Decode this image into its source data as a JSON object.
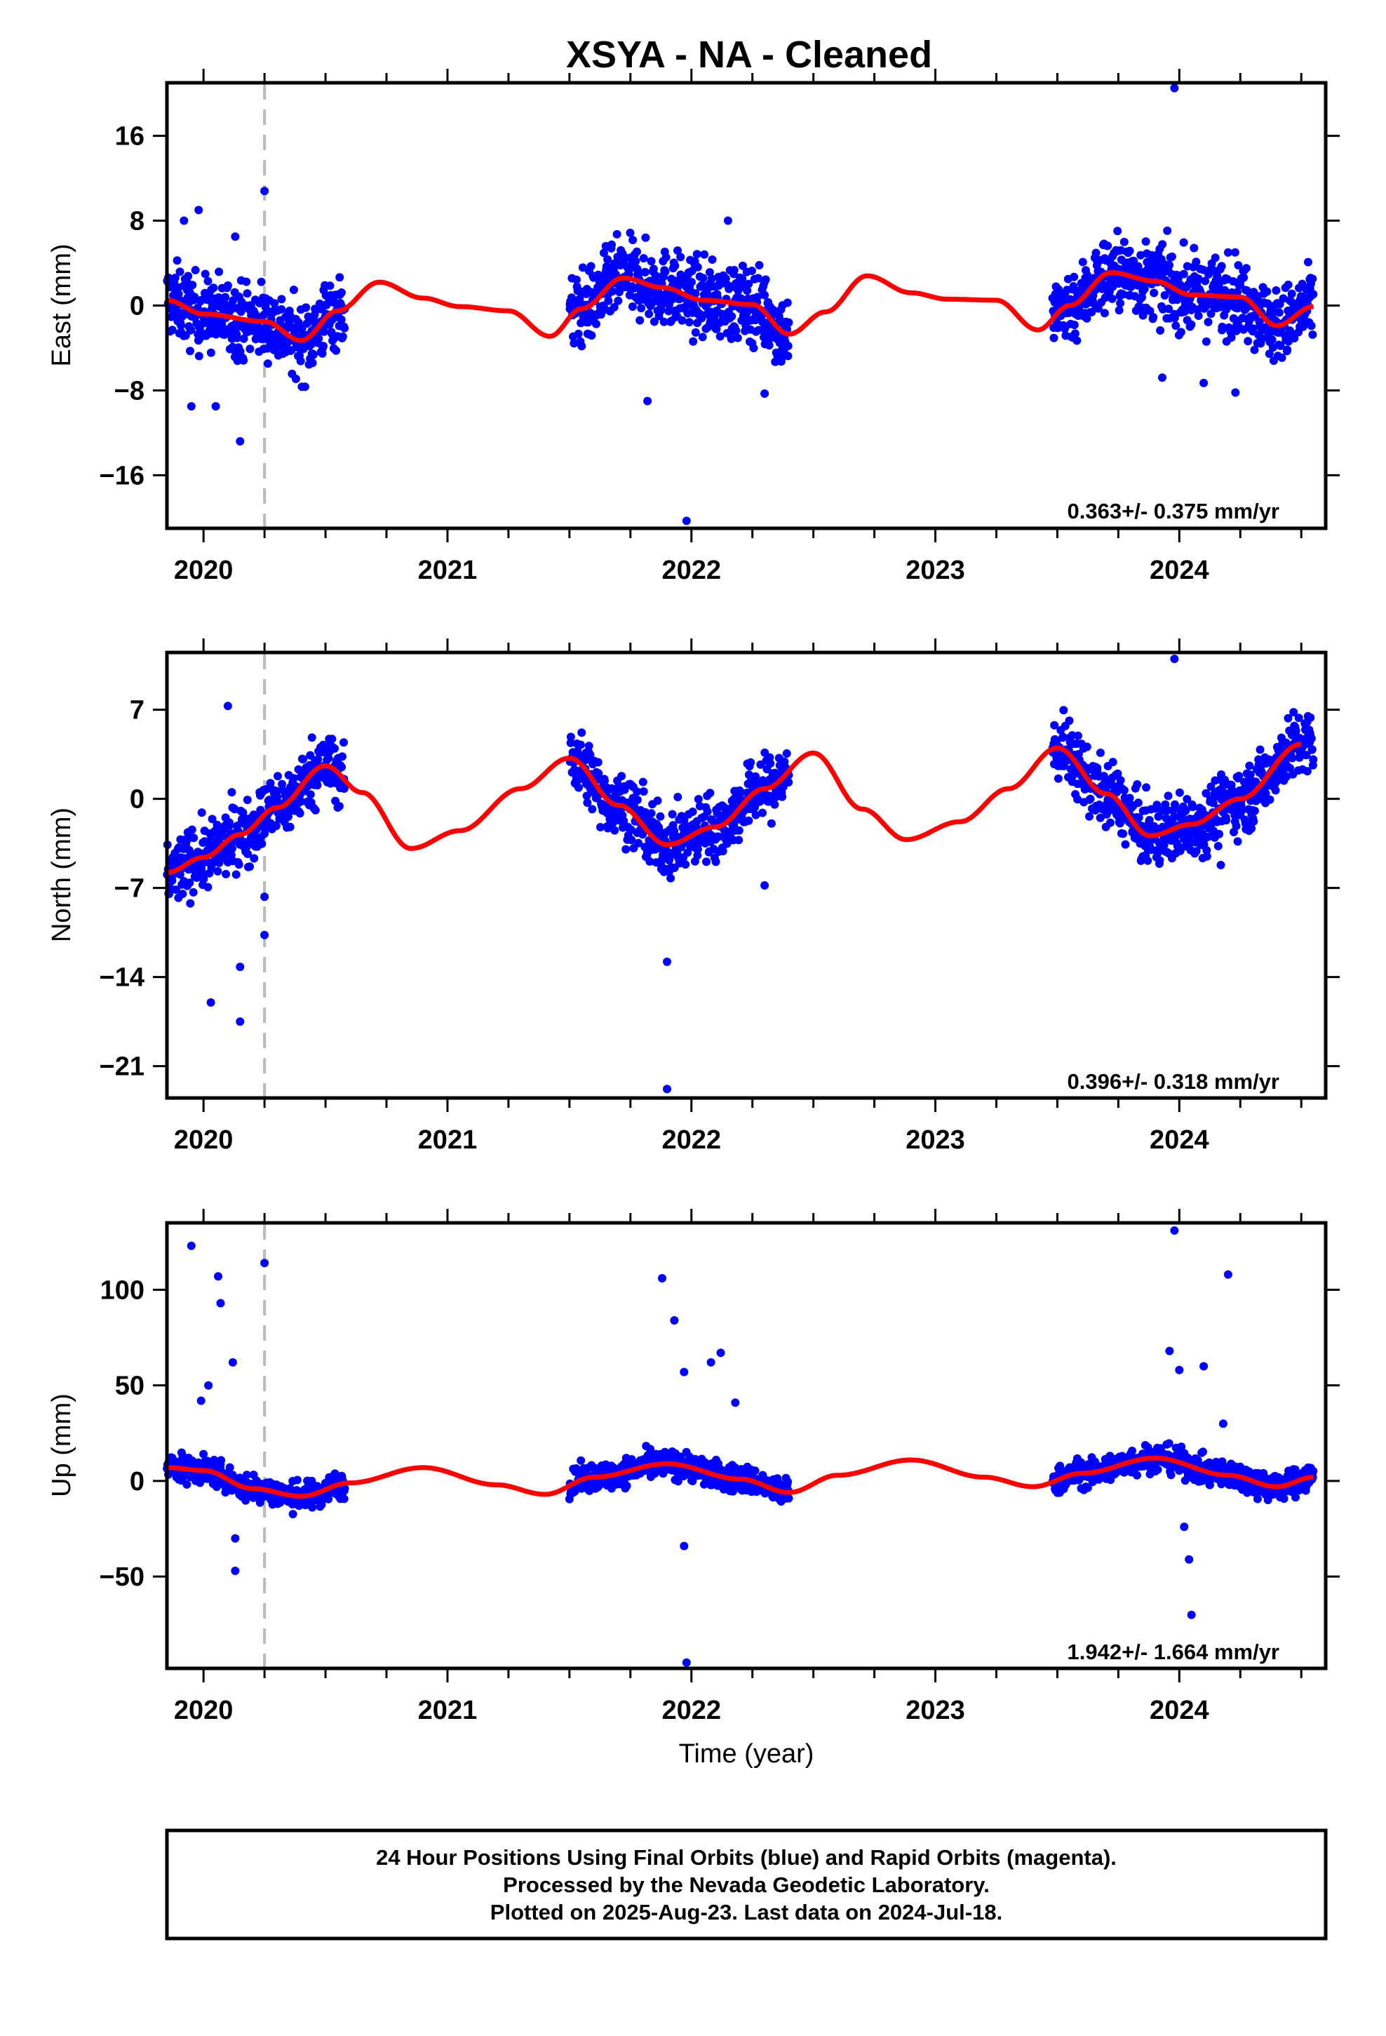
{
  "chart_data": [
    {
      "type": "scatter",
      "title": "XSYA  - NA - Cleaned",
      "ylabel": "East (mm)",
      "xlabel": "",
      "xlim": [
        2019.85,
        2024.6
      ],
      "ylim": [
        -21,
        21
      ],
      "yticks": [
        -16,
        -8,
        0,
        8,
        16
      ],
      "xticks": [
        2020,
        2021,
        2022,
        2023,
        2024
      ],
      "x_minor_ticks": "quarter-year",
      "reference_line_x": 2020.25,
      "rate_label": "0.363+/- 0.375 mm/yr",
      "grid": false,
      "colors": {
        "points": "#0000ff",
        "model": "#ff0000",
        "reference": "#bbbbbb"
      },
      "model_curve": {
        "x": [
          2019.85,
          2020.0,
          2020.25,
          2020.4,
          2020.55,
          2020.72,
          2020.9,
          2021.05,
          2021.25,
          2021.42,
          2021.55,
          2021.72,
          2021.88,
          2022.05,
          2022.25,
          2022.4,
          2022.55,
          2022.72,
          2022.9,
          2023.05,
          2023.25,
          2023.42,
          2023.55,
          2023.72,
          2023.9,
          2024.05,
          2024.25,
          2024.4,
          2024.55
        ],
        "y": [
          0.5,
          -0.8,
          -1.5,
          -3.3,
          -0.5,
          2.2,
          0.7,
          -0.1,
          -0.5,
          -2.9,
          -0.3,
          2.6,
          1.7,
          0.5,
          0.1,
          -2.7,
          -0.6,
          2.8,
          1.2,
          0.6,
          0.5,
          -2.3,
          0.0,
          3.1,
          2.3,
          1.0,
          0.8,
          -1.9,
          -0.1
        ]
      },
      "points": {
        "segments": [
          [
            2019.85,
            2020.58
          ],
          [
            2021.5,
            2022.4
          ],
          [
            2023.48,
            2024.55
          ]
        ],
        "count_estimate": 1500,
        "scatter_mm": 2.5,
        "outliers": [
          [
            2019.92,
            8.0
          ],
          [
            2019.98,
            9.0
          ],
          [
            2019.95,
            -9.5
          ],
          [
            2020.05,
            -9.5
          ],
          [
            2020.15,
            -12.8
          ],
          [
            2020.13,
            6.5
          ],
          [
            2020.25,
            10.8
          ],
          [
            2021.82,
            -9.0
          ],
          [
            2021.98,
            -20.3
          ],
          [
            2022.15,
            8.0
          ],
          [
            2022.3,
            -8.3
          ],
          [
            2023.98,
            20.5
          ],
          [
            2023.93,
            -6.8
          ],
          [
            2024.1,
            -7.3
          ],
          [
            2024.23,
            -8.2
          ],
          [
            2024.2,
            5.0
          ]
        ]
      }
    },
    {
      "type": "scatter",
      "ylabel": "North (mm)",
      "xlabel": "",
      "xlim": [
        2019.85,
        2024.6
      ],
      "ylim": [
        -23.5,
        11.5
      ],
      "yticks": [
        -21,
        -14,
        -7,
        0,
        7
      ],
      "xticks": [
        2020,
        2021,
        2022,
        2023,
        2024
      ],
      "x_minor_ticks": "quarter-year",
      "reference_line_x": 2020.25,
      "rate_label": "0.396+/- 0.318 mm/yr",
      "grid": false,
      "colors": {
        "points": "#0000ff",
        "model": "#ff0000",
        "reference": "#bbbbbb"
      },
      "model_curve": {
        "x": [
          2019.85,
          2020.0,
          2020.15,
          2020.3,
          2020.5,
          2020.65,
          2020.85,
          2021.05,
          2021.3,
          2021.5,
          2021.7,
          2021.9,
          2022.1,
          2022.3,
          2022.5,
          2022.7,
          2022.88,
          2023.1,
          2023.3,
          2023.5,
          2023.7,
          2023.88,
          2024.05,
          2024.25,
          2024.5
        ],
        "y": [
          -5.8,
          -4.6,
          -2.8,
          -0.7,
          2.6,
          0.5,
          -3.9,
          -2.5,
          0.8,
          3.2,
          -0.5,
          -3.6,
          -2.2,
          0.8,
          3.6,
          -0.8,
          -3.2,
          -1.8,
          0.8,
          4.0,
          0.4,
          -2.9,
          -2.0,
          0.0,
          4.3
        ]
      },
      "points": {
        "segments": [
          [
            2019.85,
            2020.58
          ],
          [
            2021.5,
            2022.4
          ],
          [
            2023.48,
            2024.55
          ]
        ],
        "count_estimate": 1500,
        "scatter_mm": 1.8,
        "outliers": [
          [
            2020.1,
            7.3
          ],
          [
            2020.03,
            -16.0
          ],
          [
            2020.15,
            -13.2
          ],
          [
            2020.15,
            -17.5
          ],
          [
            2020.25,
            -7.7
          ],
          [
            2020.25,
            -10.7
          ],
          [
            2021.9,
            -12.8
          ],
          [
            2021.9,
            -22.8
          ],
          [
            2022.3,
            -6.8
          ],
          [
            2023.98,
            11.0
          ],
          [
            2023.93,
            -4.0
          ],
          [
            2024.17,
            -5.2
          ]
        ]
      }
    },
    {
      "type": "scatter",
      "ylabel": "Up (mm)",
      "xlabel": "Time (year)",
      "xlim": [
        2019.85,
        2024.6
      ],
      "ylim": [
        -98,
        135
      ],
      "yticks": [
        -50,
        0,
        50,
        100
      ],
      "xticks": [
        2020,
        2021,
        2022,
        2023,
        2024
      ],
      "x_minor_ticks": "quarter-year",
      "reference_line_x": 2020.25,
      "rate_label": "1.942+/- 1.664 mm/yr",
      "grid": false,
      "colors": {
        "points": "#0000ff",
        "model": "#ff0000",
        "reference": "#bbbbbb"
      },
      "model_curve": {
        "x": [
          2019.85,
          2020.0,
          2020.2,
          2020.4,
          2020.6,
          2020.9,
          2021.2,
          2021.4,
          2021.6,
          2021.9,
          2022.2,
          2022.4,
          2022.6,
          2022.9,
          2023.2,
          2023.4,
          2023.6,
          2023.9,
          2024.2,
          2024.4,
          2024.55
        ],
        "y": [
          7,
          5.5,
          -4,
          -8,
          -1,
          7,
          -2,
          -7,
          2,
          9,
          1,
          -6,
          3,
          11,
          2,
          -3,
          4,
          12,
          3,
          -3,
          2
        ]
      },
      "points": {
        "segments": [
          [
            2019.85,
            2020.58
          ],
          [
            2021.5,
            2022.4
          ],
          [
            2023.48,
            2024.55
          ]
        ],
        "count_estimate": 1500,
        "scatter_mm": 5,
        "outliers": [
          [
            2019.95,
            123
          ],
          [
            2020.06,
            107
          ],
          [
            2020.07,
            93
          ],
          [
            2020.12,
            62
          ],
          [
            2019.99,
            42
          ],
          [
            2020.02,
            50
          ],
          [
            2020.13,
            -47
          ],
          [
            2020.13,
            -30
          ],
          [
            2020.25,
            114
          ],
          [
            2021.88,
            106
          ],
          [
            2021.93,
            84
          ],
          [
            2021.97,
            57
          ],
          [
            2022.12,
            67
          ],
          [
            2022.08,
            62
          ],
          [
            2021.98,
            -95
          ],
          [
            2021.97,
            -34
          ],
          [
            2022.18,
            41
          ],
          [
            2023.98,
            131
          ],
          [
            2023.96,
            68
          ],
          [
            2024.2,
            108
          ],
          [
            2024.0,
            58
          ],
          [
            2024.02,
            -24
          ],
          [
            2024.04,
            -41
          ],
          [
            2024.05,
            -70
          ],
          [
            2024.1,
            60
          ],
          [
            2024.18,
            30
          ]
        ]
      }
    }
  ],
  "footer": {
    "line1": "24 Hour Positions Using Final Orbits (blue) and Rapid Orbits (magenta).",
    "line2": "Processed by the Nevada Geodetic Laboratory.",
    "line3": "Plotted on 2025-Aug-23. Last data on 2024-Jul-18."
  }
}
